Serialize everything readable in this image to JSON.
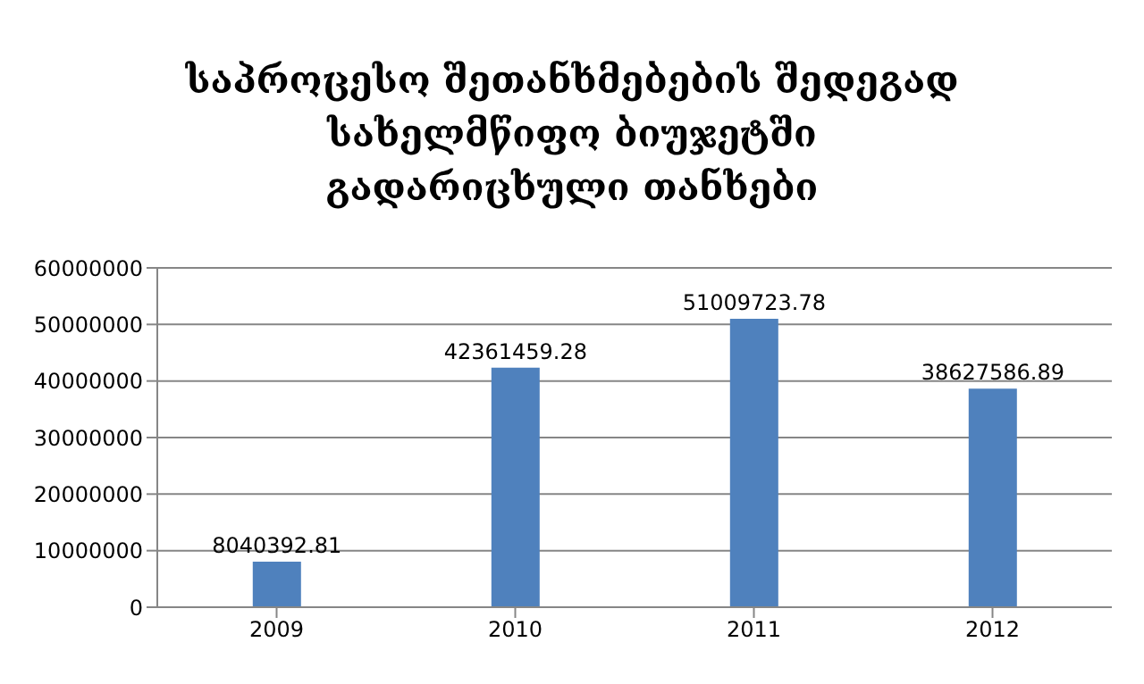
{
  "chart_data": {
    "type": "bar",
    "title": "საპროცესო შეთანხმებების შედეგად სახელმწიფო ბიუჯეტში გადარიცხული თანხები",
    "categories": [
      "2009",
      "2010",
      "2011",
      "2012"
    ],
    "values": [
      8040392.81,
      42361459.28,
      51009723.78,
      38627586.89
    ],
    "color": "#4f81bd",
    "ylim": [
      0,
      60000000
    ],
    "yticks": [
      0,
      10000000,
      20000000,
      30000000,
      40000000,
      50000000,
      60000000
    ],
    "grid": "y",
    "data_labels": true
  }
}
